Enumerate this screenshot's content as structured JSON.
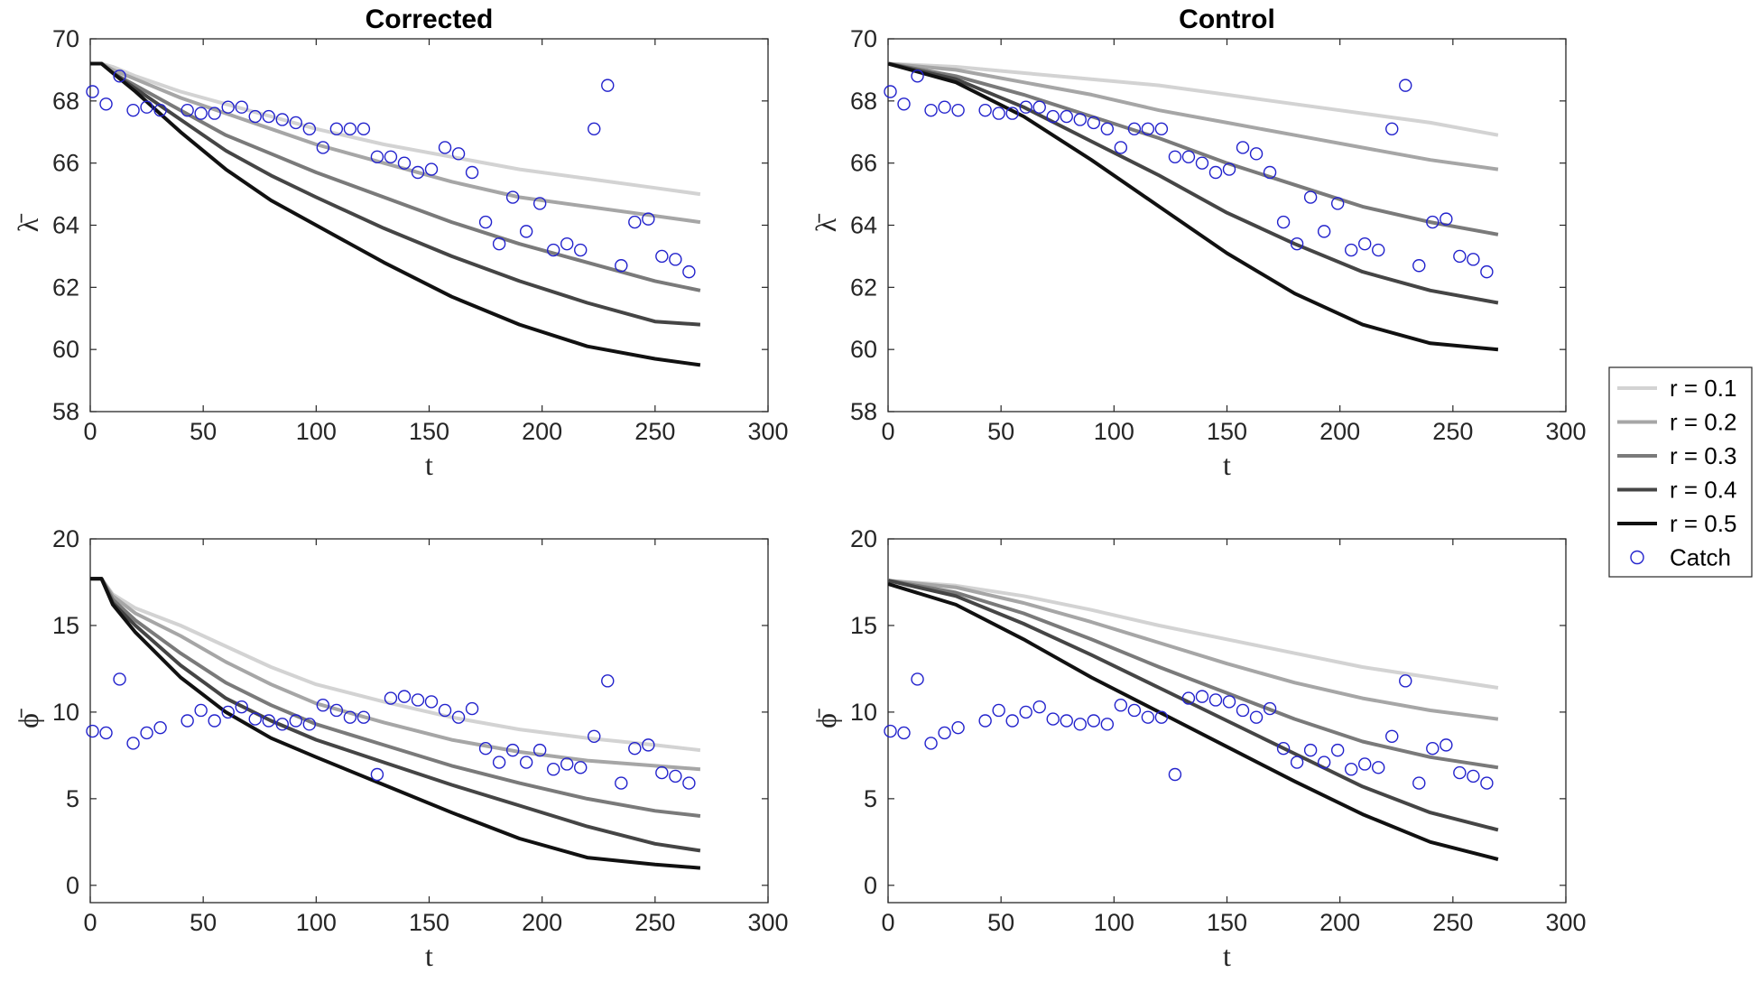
{
  "chart_data": [
    {
      "type": "line",
      "title": "Corrected",
      "xlabel": "t",
      "ylabel": "λ̄",
      "xlim": [
        0,
        300
      ],
      "ylim": [
        58,
        70
      ],
      "xticks": [
        0,
        50,
        100,
        150,
        200,
        250,
        300
      ],
      "yticks": [
        58,
        60,
        62,
        64,
        66,
        68,
        70
      ],
      "series": [
        {
          "name": "r = 0.1",
          "color": "#d3d3d3",
          "x": [
            0,
            5,
            10,
            20,
            40,
            60,
            80,
            100,
            130,
            160,
            190,
            220,
            250,
            270
          ],
          "y": [
            69.2,
            69.2,
            69.1,
            68.8,
            68.3,
            67.9,
            67.5,
            67.1,
            66.6,
            66.2,
            65.8,
            65.5,
            65.2,
            65.0
          ]
        },
        {
          "name": "r = 0.2",
          "color": "#a6a6a6",
          "x": [
            0,
            5,
            10,
            20,
            40,
            60,
            80,
            100,
            130,
            160,
            190,
            220,
            250,
            270
          ],
          "y": [
            69.2,
            69.2,
            69.0,
            68.7,
            68.1,
            67.6,
            67.1,
            66.6,
            66.0,
            65.4,
            64.9,
            64.6,
            64.3,
            64.1
          ]
        },
        {
          "name": "r = 0.3",
          "color": "#7a7a7a",
          "x": [
            0,
            5,
            10,
            20,
            40,
            60,
            80,
            100,
            130,
            160,
            190,
            220,
            250,
            270
          ],
          "y": [
            69.2,
            69.2,
            68.9,
            68.5,
            67.7,
            66.9,
            66.3,
            65.7,
            64.9,
            64.1,
            63.4,
            62.8,
            62.2,
            61.9
          ]
        },
        {
          "name": "r = 0.4",
          "color": "#454545",
          "x": [
            0,
            5,
            10,
            20,
            40,
            60,
            80,
            100,
            130,
            160,
            190,
            220,
            250,
            270
          ],
          "y": [
            69.2,
            69.2,
            68.9,
            68.4,
            67.4,
            66.4,
            65.6,
            64.9,
            63.9,
            63.0,
            62.2,
            61.5,
            60.9,
            60.8
          ]
        },
        {
          "name": "r = 0.5",
          "color": "#111111",
          "x": [
            0,
            5,
            10,
            20,
            40,
            60,
            80,
            100,
            130,
            160,
            190,
            220,
            250,
            270
          ],
          "y": [
            69.2,
            69.2,
            68.9,
            68.3,
            67.0,
            65.8,
            64.8,
            64.0,
            62.8,
            61.7,
            60.8,
            60.1,
            59.7,
            59.5
          ]
        }
      ],
      "scatter": {
        "name": "Catch",
        "color": "#2222cc",
        "x": [
          1,
          7,
          13,
          19,
          25,
          31,
          43,
          49,
          55,
          61,
          67,
          73,
          79,
          85,
          91,
          97,
          103,
          109,
          115,
          121,
          127,
          133,
          139,
          145,
          151,
          157,
          163,
          169,
          175,
          181,
          187,
          193,
          199,
          205,
          211,
          217,
          223,
          229,
          235,
          241,
          247,
          253,
          259,
          265
        ],
        "y": [
          68.3,
          67.9,
          68.8,
          67.7,
          67.8,
          67.7,
          67.7,
          67.6,
          67.6,
          67.8,
          67.8,
          67.5,
          67.5,
          67.4,
          67.3,
          67.1,
          66.5,
          67.1,
          67.1,
          67.1,
          66.2,
          66.2,
          66.0,
          65.7,
          65.8,
          66.5,
          66.3,
          65.7,
          64.1,
          63.4,
          64.9,
          63.8,
          64.7,
          63.2,
          63.4,
          63.2,
          67.1,
          68.5,
          62.7,
          64.1,
          64.2,
          63.0,
          62.9,
          62.5
        ]
      }
    },
    {
      "type": "line",
      "title": "Control",
      "xlabel": "t",
      "ylabel": "λ̄",
      "xlim": [
        0,
        300
      ],
      "ylim": [
        58,
        70
      ],
      "xticks": [
        0,
        50,
        100,
        150,
        200,
        250,
        300
      ],
      "yticks": [
        58,
        60,
        62,
        64,
        66,
        68,
        70
      ],
      "series": [
        {
          "name": "r = 0.1",
          "color": "#d3d3d3",
          "x": [
            0,
            30,
            60,
            90,
            120,
            150,
            180,
            210,
            240,
            270
          ],
          "y": [
            69.2,
            69.1,
            68.9,
            68.7,
            68.5,
            68.2,
            67.9,
            67.6,
            67.3,
            66.9
          ]
        },
        {
          "name": "r = 0.2",
          "color": "#a6a6a6",
          "x": [
            0,
            30,
            60,
            90,
            120,
            150,
            180,
            210,
            240,
            270
          ],
          "y": [
            69.2,
            69.0,
            68.6,
            68.2,
            67.7,
            67.3,
            66.9,
            66.5,
            66.1,
            65.8
          ]
        },
        {
          "name": "r = 0.3",
          "color": "#7a7a7a",
          "x": [
            0,
            30,
            60,
            90,
            120,
            150,
            180,
            210,
            240,
            270
          ],
          "y": [
            69.2,
            68.8,
            68.2,
            67.5,
            66.8,
            66.0,
            65.3,
            64.6,
            64.1,
            63.7
          ]
        },
        {
          "name": "r = 0.4",
          "color": "#454545",
          "x": [
            0,
            30,
            60,
            90,
            120,
            150,
            180,
            210,
            240,
            270
          ],
          "y": [
            69.2,
            68.7,
            67.8,
            66.7,
            65.6,
            64.4,
            63.4,
            62.5,
            61.9,
            61.5
          ]
        },
        {
          "name": "r = 0.5",
          "color": "#111111",
          "x": [
            0,
            30,
            60,
            90,
            120,
            150,
            180,
            210,
            240,
            270
          ],
          "y": [
            69.2,
            68.6,
            67.5,
            66.1,
            64.6,
            63.1,
            61.8,
            60.8,
            60.2,
            60.0
          ]
        }
      ],
      "scatter": {
        "name": "Catch",
        "color": "#2222cc",
        "x": [
          1,
          7,
          13,
          19,
          25,
          31,
          43,
          49,
          55,
          61,
          67,
          73,
          79,
          85,
          91,
          97,
          103,
          109,
          115,
          121,
          127,
          133,
          139,
          145,
          151,
          157,
          163,
          169,
          175,
          181,
          187,
          193,
          199,
          205,
          211,
          217,
          223,
          229,
          235,
          241,
          247,
          253,
          259,
          265
        ],
        "y": [
          68.3,
          67.9,
          68.8,
          67.7,
          67.8,
          67.7,
          67.7,
          67.6,
          67.6,
          67.8,
          67.8,
          67.5,
          67.5,
          67.4,
          67.3,
          67.1,
          66.5,
          67.1,
          67.1,
          67.1,
          66.2,
          66.2,
          66.0,
          65.7,
          65.8,
          66.5,
          66.3,
          65.7,
          64.1,
          63.4,
          64.9,
          63.8,
          64.7,
          63.2,
          63.4,
          63.2,
          67.1,
          68.5,
          62.7,
          64.1,
          64.2,
          63.0,
          62.9,
          62.5
        ]
      }
    },
    {
      "type": "line",
      "title": "",
      "xlabel": "t",
      "ylabel": "ϕ̄",
      "xlim": [
        0,
        300
      ],
      "ylim": [
        -1,
        20
      ],
      "xticks": [
        0,
        50,
        100,
        150,
        200,
        250,
        300
      ],
      "yticks": [
        0,
        5,
        10,
        15,
        20
      ],
      "series": [
        {
          "name": "r = 0.1",
          "color": "#d3d3d3",
          "x": [
            0,
            5,
            10,
            20,
            40,
            60,
            80,
            100,
            130,
            160,
            190,
            220,
            250,
            270
          ],
          "y": [
            17.7,
            17.7,
            16.8,
            16.0,
            15.0,
            13.8,
            12.6,
            11.6,
            10.6,
            9.7,
            9.0,
            8.5,
            8.1,
            7.8
          ]
        },
        {
          "name": "r = 0.2",
          "color": "#a6a6a6",
          "x": [
            0,
            5,
            10,
            20,
            40,
            60,
            80,
            100,
            130,
            160,
            190,
            220,
            250,
            270
          ],
          "y": [
            17.7,
            17.7,
            16.7,
            15.7,
            14.4,
            12.9,
            11.6,
            10.5,
            9.4,
            8.4,
            7.7,
            7.2,
            6.9,
            6.7
          ]
        },
        {
          "name": "r = 0.3",
          "color": "#7a7a7a",
          "x": [
            0,
            5,
            10,
            20,
            40,
            60,
            80,
            100,
            130,
            160,
            190,
            220,
            250,
            270
          ],
          "y": [
            17.7,
            17.7,
            16.5,
            15.3,
            13.4,
            11.7,
            10.4,
            9.3,
            8.1,
            6.9,
            5.9,
            5.0,
            4.3,
            4.0
          ]
        },
        {
          "name": "r = 0.4",
          "color": "#454545",
          "x": [
            0,
            5,
            10,
            20,
            40,
            60,
            80,
            100,
            130,
            160,
            190,
            220,
            250,
            270
          ],
          "y": [
            17.7,
            17.7,
            16.3,
            15.0,
            12.7,
            10.8,
            9.5,
            8.4,
            7.1,
            5.8,
            4.6,
            3.4,
            2.4,
            2.0
          ]
        },
        {
          "name": "r = 0.5",
          "color": "#111111",
          "x": [
            0,
            5,
            10,
            20,
            40,
            60,
            80,
            100,
            130,
            160,
            190,
            220,
            250,
            270
          ],
          "y": [
            17.7,
            17.7,
            16.2,
            14.6,
            12.0,
            10.0,
            8.5,
            7.4,
            5.8,
            4.2,
            2.7,
            1.6,
            1.2,
            1.0
          ]
        }
      ],
      "scatter": {
        "name": "Catch",
        "color": "#2222cc",
        "x": [
          1,
          7,
          13,
          19,
          25,
          31,
          43,
          49,
          55,
          61,
          67,
          73,
          79,
          85,
          91,
          97,
          103,
          109,
          115,
          121,
          127,
          133,
          139,
          145,
          151,
          157,
          163,
          169,
          175,
          181,
          187,
          193,
          199,
          205,
          211,
          217,
          223,
          229,
          235,
          241,
          247,
          253,
          259,
          265
        ],
        "y": [
          8.9,
          8.8,
          11.9,
          8.2,
          8.8,
          9.1,
          9.5,
          10.1,
          9.5,
          10.0,
          10.3,
          9.6,
          9.5,
          9.3,
          9.5,
          9.3,
          10.4,
          10.1,
          9.7,
          9.7,
          6.4,
          10.8,
          10.9,
          10.7,
          10.6,
          10.1,
          9.7,
          10.2,
          7.9,
          7.1,
          7.8,
          7.1,
          7.8,
          6.7,
          7.0,
          6.8,
          8.6,
          11.8,
          5.9,
          7.9,
          8.1,
          6.5,
          6.3,
          5.9
        ]
      }
    },
    {
      "type": "line",
      "title": "",
      "xlabel": "t",
      "ylabel": "ϕ̄",
      "xlim": [
        0,
        300
      ],
      "ylim": [
        -1,
        20
      ],
      "xticks": [
        0,
        50,
        100,
        150,
        200,
        250,
        300
      ],
      "yticks": [
        0,
        5,
        10,
        15,
        20
      ],
      "series": [
        {
          "name": "r = 0.1",
          "color": "#d3d3d3",
          "x": [
            0,
            30,
            60,
            90,
            120,
            150,
            180,
            210,
            240,
            270
          ],
          "y": [
            17.6,
            17.3,
            16.7,
            15.9,
            15.0,
            14.2,
            13.4,
            12.6,
            12.0,
            11.4
          ]
        },
        {
          "name": "r = 0.2",
          "color": "#a6a6a6",
          "x": [
            0,
            30,
            60,
            90,
            120,
            150,
            180,
            210,
            240,
            270
          ],
          "y": [
            17.6,
            17.2,
            16.3,
            15.2,
            14.0,
            12.8,
            11.7,
            10.8,
            10.1,
            9.6
          ]
        },
        {
          "name": "r = 0.3",
          "color": "#7a7a7a",
          "x": [
            0,
            30,
            60,
            90,
            120,
            150,
            180,
            210,
            240,
            270
          ],
          "y": [
            17.6,
            16.9,
            15.7,
            14.2,
            12.6,
            11.1,
            9.6,
            8.3,
            7.4,
            6.8
          ]
        },
        {
          "name": "r = 0.4",
          "color": "#454545",
          "x": [
            0,
            30,
            60,
            90,
            120,
            150,
            180,
            210,
            240,
            270
          ],
          "y": [
            17.6,
            16.7,
            15.1,
            13.3,
            11.4,
            9.5,
            7.6,
            5.7,
            4.2,
            3.2
          ]
        },
        {
          "name": "r = 0.5",
          "color": "#111111",
          "x": [
            0,
            30,
            60,
            90,
            120,
            150,
            180,
            210,
            240,
            270
          ],
          "y": [
            17.4,
            16.2,
            14.2,
            12.0,
            10.0,
            8.0,
            6.0,
            4.1,
            2.5,
            1.5
          ]
        }
      ],
      "scatter": {
        "name": "Catch",
        "color": "#2222cc",
        "x": [
          1,
          7,
          13,
          19,
          25,
          31,
          43,
          49,
          55,
          61,
          67,
          73,
          79,
          85,
          91,
          97,
          103,
          109,
          115,
          121,
          127,
          133,
          139,
          145,
          151,
          157,
          163,
          169,
          175,
          181,
          187,
          193,
          199,
          205,
          211,
          217,
          223,
          229,
          235,
          241,
          247,
          253,
          259,
          265
        ],
        "y": [
          8.9,
          8.8,
          11.9,
          8.2,
          8.8,
          9.1,
          9.5,
          10.1,
          9.5,
          10.0,
          10.3,
          9.6,
          9.5,
          9.3,
          9.5,
          9.3,
          10.4,
          10.1,
          9.7,
          9.7,
          6.4,
          10.8,
          10.9,
          10.7,
          10.6,
          10.1,
          9.7,
          10.2,
          7.9,
          7.1,
          7.8,
          7.1,
          7.8,
          6.7,
          7.0,
          6.8,
          8.6,
          11.8,
          5.9,
          7.9,
          8.1,
          6.5,
          6.3,
          5.9
        ]
      }
    }
  ],
  "legend": {
    "placement": "right-middle",
    "entries": [
      {
        "label": "r = 0.1",
        "color": "#d3d3d3",
        "kind": "line"
      },
      {
        "label": "r = 0.2",
        "color": "#a6a6a6",
        "kind": "line"
      },
      {
        "label": "r = 0.3",
        "color": "#7a7a7a",
        "kind": "line"
      },
      {
        "label": "r = 0.4",
        "color": "#454545",
        "kind": "line"
      },
      {
        "label": "r = 0.5",
        "color": "#111111",
        "kind": "line"
      },
      {
        "label": "Catch",
        "color": "#2222cc",
        "kind": "marker"
      }
    ]
  }
}
